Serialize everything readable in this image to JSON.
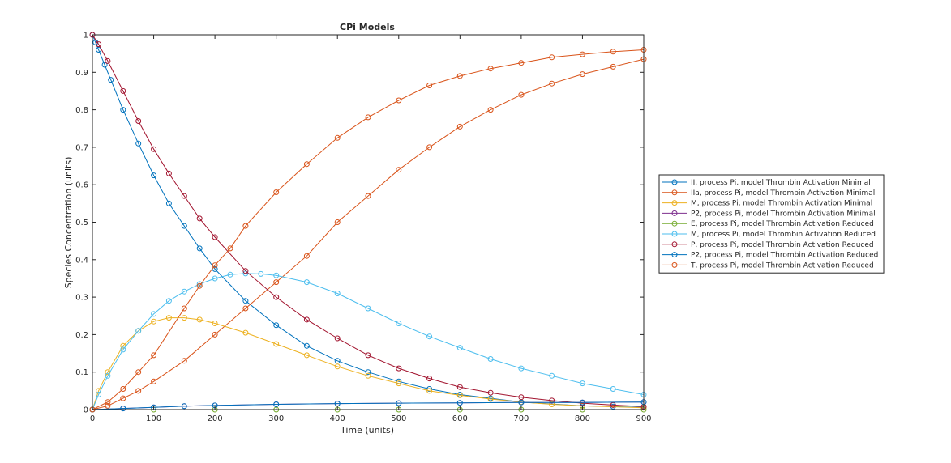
{
  "chart_data": {
    "type": "line",
    "title": "CPi Models",
    "xlabel": "Time (units)",
    "ylabel": "Species Concentration (units)",
    "xlim": [
      0,
      900
    ],
    "ylim": [
      0,
      1
    ],
    "xticks": [
      0,
      100,
      200,
      300,
      400,
      500,
      600,
      700,
      800,
      900
    ],
    "yticks": [
      0,
      0.1,
      0.2,
      0.3,
      0.4,
      0.5,
      0.6,
      0.7,
      0.8,
      0.9,
      1
    ],
    "xtick_labels": [
      "0",
      "100",
      "200",
      "300",
      "400",
      "500",
      "600",
      "700",
      "800",
      "900"
    ],
    "ytick_labels": [
      "0",
      "0.1",
      "0.2",
      "0.3",
      "0.4",
      "0.5",
      "0.6",
      "0.7",
      "0.8",
      "0.9",
      "1"
    ],
    "grid": false,
    "legend_position": "outside-right",
    "marker": "circle",
    "series": [
      {
        "name": "II, process Pi, model Thrombin Activation Minimal",
        "color": "#0072bd",
        "points": [
          [
            0,
            1
          ],
          [
            5,
            0.98
          ],
          [
            10,
            0.96
          ],
          [
            20,
            0.92
          ],
          [
            30,
            0.88
          ],
          [
            50,
            0.8
          ],
          [
            75,
            0.71
          ],
          [
            100,
            0.625
          ],
          [
            125,
            0.55
          ],
          [
            150,
            0.49
          ],
          [
            175,
            0.43
          ],
          [
            200,
            0.375
          ],
          [
            250,
            0.29
          ],
          [
            300,
            0.225
          ],
          [
            350,
            0.17
          ],
          [
            400,
            0.13
          ],
          [
            450,
            0.1
          ],
          [
            500,
            0.075
          ],
          [
            550,
            0.055
          ],
          [
            600,
            0.04
          ],
          [
            650,
            0.03
          ],
          [
            700,
            0.02
          ],
          [
            750,
            0.015
          ],
          [
            800,
            0.01
          ],
          [
            850,
            0.008
          ],
          [
            900,
            0.006
          ]
        ]
      },
      {
        "name": "IIa, process Pi, model Thrombin Activation Minimal",
        "color": "#d95319",
        "points": [
          [
            0,
            0
          ],
          [
            25,
            0.01
          ],
          [
            50,
            0.03
          ],
          [
            75,
            0.05
          ],
          [
            100,
            0.075
          ],
          [
            150,
            0.13
          ],
          [
            200,
            0.2
          ],
          [
            250,
            0.27
          ],
          [
            300,
            0.34
          ],
          [
            350,
            0.41
          ],
          [
            400,
            0.5
          ],
          [
            450,
            0.57
          ],
          [
            500,
            0.64
          ],
          [
            550,
            0.7
          ],
          [
            600,
            0.755
          ],
          [
            650,
            0.8
          ],
          [
            700,
            0.84
          ],
          [
            750,
            0.87
          ],
          [
            800,
            0.895
          ],
          [
            850,
            0.915
          ],
          [
            900,
            0.935
          ]
        ]
      },
      {
        "name": "M, process Pi, model Thrombin Activation Minimal",
        "color": "#edb120",
        "points": [
          [
            0,
            0
          ],
          [
            10,
            0.05
          ],
          [
            25,
            0.1
          ],
          [
            50,
            0.17
          ],
          [
            75,
            0.21
          ],
          [
            100,
            0.235
          ],
          [
            125,
            0.245
          ],
          [
            150,
            0.245
          ],
          [
            175,
            0.24
          ],
          [
            200,
            0.23
          ],
          [
            250,
            0.205
          ],
          [
            300,
            0.175
          ],
          [
            350,
            0.145
          ],
          [
            400,
            0.115
          ],
          [
            450,
            0.09
          ],
          [
            500,
            0.07
          ],
          [
            550,
            0.05
          ],
          [
            600,
            0.038
          ],
          [
            650,
            0.028
          ],
          [
            700,
            0.02
          ],
          [
            750,
            0.014
          ],
          [
            800,
            0.01
          ],
          [
            900,
            0.005
          ]
        ]
      },
      {
        "name": "P2, process Pi, model Thrombin Activation Minimal",
        "color": "#7e2f8e",
        "points": [
          [
            0,
            0
          ],
          [
            50,
            0.003
          ],
          [
            100,
            0.006
          ],
          [
            150,
            0.009
          ],
          [
            200,
            0.011
          ],
          [
            300,
            0.014
          ],
          [
            400,
            0.016
          ],
          [
            500,
            0.017
          ],
          [
            600,
            0.018
          ],
          [
            700,
            0.019
          ],
          [
            800,
            0.019
          ],
          [
            900,
            0.02
          ]
        ]
      },
      {
        "name": "E, process Pi, model Thrombin Activation Reduced",
        "color": "#77ac30",
        "points": [
          [
            0,
            0
          ],
          [
            100,
            0
          ],
          [
            200,
            0
          ],
          [
            300,
            0
          ],
          [
            400,
            0
          ],
          [
            500,
            0
          ],
          [
            600,
            0
          ],
          [
            700,
            0
          ],
          [
            800,
            0
          ],
          [
            900,
            0
          ]
        ]
      },
      {
        "name": "M, process Pi, model Thrombin Activation Reduced",
        "color": "#4dbeee",
        "points": [
          [
            0,
            0
          ],
          [
            10,
            0.04
          ],
          [
            25,
            0.09
          ],
          [
            50,
            0.16
          ],
          [
            75,
            0.21
          ],
          [
            100,
            0.255
          ],
          [
            125,
            0.29
          ],
          [
            150,
            0.315
          ],
          [
            175,
            0.335
          ],
          [
            200,
            0.35
          ],
          [
            225,
            0.36
          ],
          [
            250,
            0.363
          ],
          [
            275,
            0.362
          ],
          [
            300,
            0.358
          ],
          [
            350,
            0.34
          ],
          [
            400,
            0.31
          ],
          [
            450,
            0.27
          ],
          [
            500,
            0.23
          ],
          [
            550,
            0.195
          ],
          [
            600,
            0.165
          ],
          [
            650,
            0.135
          ],
          [
            700,
            0.11
          ],
          [
            750,
            0.09
          ],
          [
            800,
            0.07
          ],
          [
            850,
            0.055
          ],
          [
            900,
            0.04
          ]
        ]
      },
      {
        "name": "P, process Pi, model Thrombin Activation Reduced",
        "color": "#a2142f",
        "points": [
          [
            0,
            1
          ],
          [
            10,
            0.975
          ],
          [
            25,
            0.93
          ],
          [
            50,
            0.85
          ],
          [
            75,
            0.77
          ],
          [
            100,
            0.695
          ],
          [
            125,
            0.63
          ],
          [
            150,
            0.57
          ],
          [
            175,
            0.51
          ],
          [
            200,
            0.46
          ],
          [
            250,
            0.37
          ],
          [
            300,
            0.3
          ],
          [
            350,
            0.24
          ],
          [
            400,
            0.19
          ],
          [
            450,
            0.145
          ],
          [
            500,
            0.11
          ],
          [
            550,
            0.083
          ],
          [
            600,
            0.06
          ],
          [
            650,
            0.045
          ],
          [
            700,
            0.033
          ],
          [
            750,
            0.024
          ],
          [
            800,
            0.017
          ],
          [
            850,
            0.012
          ],
          [
            900,
            0.008
          ]
        ]
      },
      {
        "name": "P2, process Pi, model Thrombin Activation Reduced",
        "color": "#0072bd",
        "points": [
          [
            0,
            0
          ],
          [
            50,
            0.003
          ],
          [
            100,
            0.006
          ],
          [
            150,
            0.009
          ],
          [
            200,
            0.011
          ],
          [
            300,
            0.014
          ],
          [
            400,
            0.016
          ],
          [
            500,
            0.017
          ],
          [
            600,
            0.018
          ],
          [
            700,
            0.019
          ],
          [
            800,
            0.019
          ],
          [
            900,
            0.02
          ]
        ]
      },
      {
        "name": "T, process Pi, model Thrombin Activation Reduced",
        "color": "#d95319",
        "points": [
          [
            0,
            0
          ],
          [
            25,
            0.02
          ],
          [
            50,
            0.055
          ],
          [
            75,
            0.1
          ],
          [
            100,
            0.145
          ],
          [
            150,
            0.27
          ],
          [
            175,
            0.33
          ],
          [
            200,
            0.385
          ],
          [
            225,
            0.43
          ],
          [
            250,
            0.49
          ],
          [
            300,
            0.58
          ],
          [
            350,
            0.655
          ],
          [
            400,
            0.725
          ],
          [
            450,
            0.78
          ],
          [
            500,
            0.825
          ],
          [
            550,
            0.865
          ],
          [
            600,
            0.89
          ],
          [
            650,
            0.91
          ],
          [
            700,
            0.925
          ],
          [
            750,
            0.94
          ],
          [
            800,
            0.948
          ],
          [
            850,
            0.955
          ],
          [
            900,
            0.96
          ]
        ]
      }
    ]
  }
}
